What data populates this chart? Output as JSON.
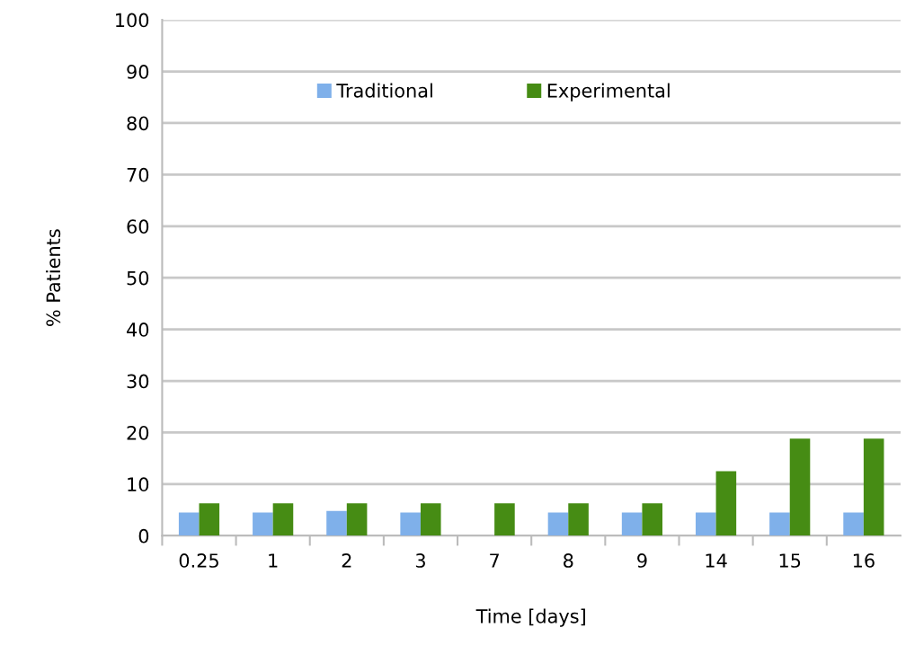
{
  "chart_data": {
    "type": "bar",
    "xlabel": "Time [days]",
    "ylabel": "% Patients",
    "categories": [
      "0.25",
      "1",
      "2",
      "3",
      "7",
      "8",
      "9",
      "14",
      "15",
      "16"
    ],
    "series": [
      {
        "name": "Traditional",
        "color": "#7fb0ea",
        "values": [
          4.5,
          4.5,
          4.8,
          4.5,
          0,
          4.5,
          4.5,
          4.5,
          4.5,
          4.5
        ]
      },
      {
        "name": "Experimental",
        "color": "#468c14",
        "values": [
          6.3,
          6.3,
          6.3,
          6.3,
          6.3,
          6.3,
          6.3,
          12.5,
          18.8,
          18.8
        ]
      }
    ],
    "ylim": [
      0,
      100
    ],
    "yticks": [
      0,
      10,
      20,
      30,
      40,
      50,
      60,
      70,
      80,
      90,
      100
    ],
    "grid": "y",
    "legend": "top"
  }
}
